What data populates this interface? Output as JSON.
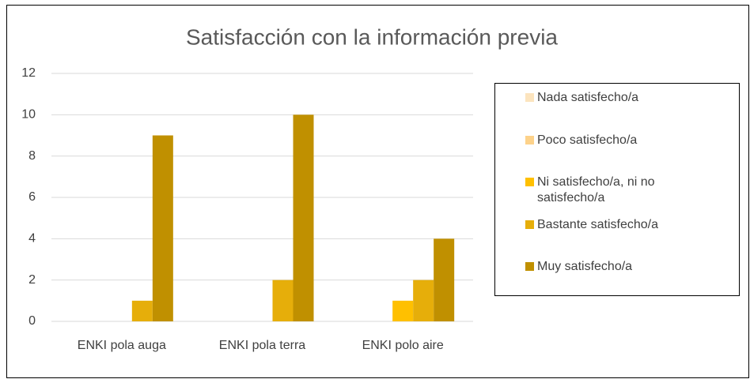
{
  "chart_data": {
    "type": "bar",
    "title": "Satisfacción con la información previa",
    "categories": [
      "ENKI pola auga",
      "ENKI pola terra",
      "ENKI polo aire"
    ],
    "series": [
      {
        "name": "Nada satisfecho/a",
        "color": "#FCE4BE",
        "values": [
          0,
          0,
          0
        ]
      },
      {
        "name": "Poco satisfecho/a",
        "color": "#FDD28A",
        "values": [
          0,
          0,
          0
        ]
      },
      {
        "name": "Ni satisfecho/a, ni no satisfecho/a",
        "color": "#FFC000",
        "values": [
          0,
          0,
          1
        ]
      },
      {
        "name": "Bastante satisfecho/a",
        "color": "#E6AE0A",
        "values": [
          1,
          2,
          2
        ]
      },
      {
        "name": "Muy satisfecho/a",
        "color": "#C09000",
        "values": [
          9,
          10,
          4
        ]
      }
    ],
    "ylim": [
      0,
      12
    ],
    "yticks": [
      0,
      2,
      4,
      6,
      8,
      10,
      12
    ],
    "grid": true,
    "legend": "right"
  }
}
